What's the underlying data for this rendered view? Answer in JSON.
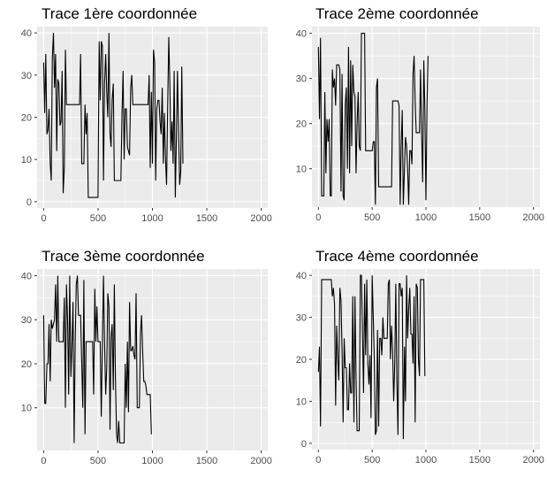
{
  "chart_data": [
    {
      "type": "line",
      "title": "Trace 1ère coordonnée",
      "xlim": [
        -60,
        2060
      ],
      "ylim": [
        -1.5,
        41.5
      ],
      "xticks": [
        0,
        500,
        1000,
        1500,
        2000
      ],
      "yticks": [
        0,
        10,
        20,
        30,
        40
      ],
      "x_step": 10,
      "grid": true,
      "series": [
        {
          "values": [
            33,
            21,
            35,
            16,
            17,
            22,
            9,
            5,
            34,
            40,
            27,
            35,
            12,
            29,
            28,
            18,
            19,
            31,
            2,
            8,
            36,
            23,
            23,
            23,
            23,
            23,
            23,
            23,
            23,
            23,
            23,
            23,
            23,
            23,
            35,
            9,
            9,
            9,
            23,
            16,
            21,
            1,
            1,
            1,
            1,
            1,
            1,
            1,
            1,
            1,
            1,
            38,
            24,
            38,
            37,
            5,
            28,
            35,
            26,
            20,
            40,
            16,
            13,
            24,
            28,
            5,
            5,
            5,
            5,
            5,
            5,
            5,
            20,
            31,
            10,
            22,
            22,
            13,
            12,
            11,
            27,
            30,
            23,
            23,
            23,
            23,
            23,
            23,
            23,
            23,
            23,
            23,
            23,
            23,
            23,
            23,
            23,
            30,
            8,
            26,
            9,
            36,
            33,
            5,
            22,
            24,
            24,
            19,
            16,
            27,
            9,
            21,
            10,
            4,
            22,
            39,
            28,
            12,
            19,
            9,
            31,
            1,
            15,
            31,
            18,
            4,
            7,
            32,
            9
          ]
        }
      ]
    },
    {
      "type": "line",
      "title": "Trace 2ème coordonnée",
      "xlim": [
        -60,
        2060
      ],
      "ylim": [
        1.5,
        41.5
      ],
      "xticks": [
        0,
        500,
        1000,
        1500,
        2000
      ],
      "yticks": [
        10,
        20,
        30,
        40
      ],
      "x_step": 10,
      "grid": true,
      "series": [
        {
          "values": [
            37,
            21,
            39,
            4,
            4,
            4,
            27,
            9,
            21,
            16,
            21,
            4,
            4,
            32,
            28,
            30,
            24,
            33,
            33,
            33,
            32,
            5,
            31,
            4,
            3,
            24,
            28,
            10,
            37,
            9,
            34,
            15,
            33,
            27,
            26,
            9,
            20,
            27,
            15,
            14,
            40,
            40,
            40,
            40,
            14,
            14,
            14,
            14,
            14,
            14,
            14,
            16,
            16,
            2,
            28,
            30,
            6,
            6,
            6,
            6,
            6,
            6,
            6,
            6,
            6,
            6,
            6,
            6,
            6,
            25,
            25,
            25,
            25,
            25,
            25,
            24,
            2,
            15,
            23,
            2,
            10,
            17,
            15,
            10,
            2,
            14,
            14,
            11,
            31,
            35,
            25,
            18,
            18,
            18,
            18,
            32,
            18,
            7,
            34,
            23,
            3,
            24,
            35
          ]
        }
      ]
    },
    {
      "type": "line",
      "title": "Trace 3ème coordonnée",
      "xlim": [
        -60,
        2060
      ],
      "ylim": [
        0.3,
        41.5
      ],
      "xticks": [
        0,
        500,
        1000,
        1500,
        2000
      ],
      "yticks": [
        10,
        20,
        30,
        40
      ],
      "x_step": 10,
      "grid": true,
      "series": [
        {
          "values": [
            31,
            11,
            11,
            20,
            20,
            29,
            16,
            30,
            28,
            29,
            30,
            38,
            25,
            40,
            25,
            25,
            25,
            25,
            25,
            35,
            10,
            38,
            30,
            13,
            40,
            17,
            24,
            34,
            2,
            25,
            38,
            40,
            31,
            31,
            31,
            20,
            10,
            39,
            4,
            25,
            25,
            25,
            25,
            25,
            25,
            25,
            13,
            37,
            25,
            33,
            25,
            25,
            25,
            8,
            25,
            40,
            25,
            13,
            19,
            36,
            33,
            5,
            26,
            29,
            14,
            38,
            17,
            4,
            2,
            7,
            2,
            2,
            2,
            2,
            2,
            20,
            10,
            25,
            9,
            34,
            23,
            23,
            24,
            22,
            21,
            36,
            10,
            10,
            10,
            27,
            31,
            23,
            16,
            16,
            15,
            13,
            13,
            13,
            13,
            4
          ]
        }
      ]
    },
    {
      "type": "line",
      "title": "Trace 4ème coordonnée",
      "xlim": [
        -60,
        2060
      ],
      "ylim": [
        -1.5,
        41.5
      ],
      "xticks": [
        0,
        500,
        1000,
        1500,
        2000
      ],
      "yticks": [
        0,
        10,
        20,
        30,
        40
      ],
      "x_step": 10,
      "grid": true,
      "series": [
        {
          "values": [
            17,
            23,
            4,
            39,
            39,
            39,
            39,
            39,
            39,
            39,
            39,
            39,
            39,
            35,
            37,
            33,
            9,
            28,
            20,
            15,
            37,
            34,
            22,
            5,
            25,
            18,
            18,
            8,
            8,
            19,
            12,
            12,
            35,
            5,
            35,
            16,
            3,
            3,
            3,
            40,
            40,
            26,
            12,
            38,
            21,
            39,
            19,
            14,
            21,
            6,
            40,
            30,
            20,
            2,
            3,
            27,
            4,
            25,
            25,
            21,
            30,
            25,
            25,
            25,
            25,
            38,
            39,
            20,
            28,
            22,
            10,
            19,
            38,
            15,
            2,
            38,
            38,
            35,
            37,
            1,
            23,
            10,
            40,
            25,
            32,
            37,
            26,
            26,
            19,
            35,
            5,
            38,
            37,
            20,
            16,
            39,
            39,
            39,
            39,
            16
          ]
        }
      ]
    }
  ]
}
